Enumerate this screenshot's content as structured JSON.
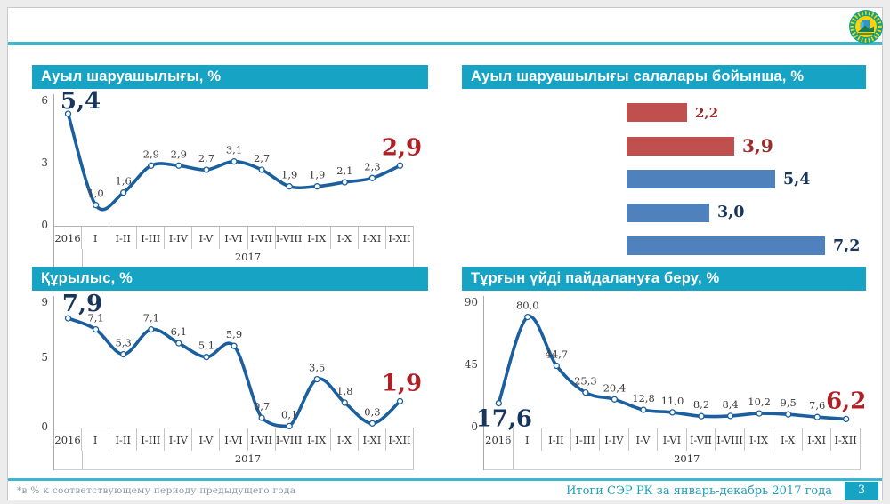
{
  "slide": {
    "header": {
      "logo": "kazstat-emblem"
    },
    "footer": {
      "footnote": "*в % к соответствующему периоду предыдущего года",
      "report_title": "Итоги СЭР РК за январь-декабрь 2017 года",
      "page_number": "3"
    }
  },
  "palette": {
    "banner_teal": "#17a3c4",
    "rule_teal": "#3eb7ce",
    "line_blue": "#1b5f9e",
    "first_label_navy": "#17365d",
    "last_label_red": "#b01f24",
    "bar_red": "#c0504d",
    "bar_blue": "#4f81bd",
    "bar_label_red": "#9b2d2a",
    "bar_label_navy": "#17365d",
    "footer_teal": "#1f9ebc"
  },
  "chart_data": [
    {
      "type": "line",
      "title": "Ауыл шаруашылығы, %",
      "categories": [
        "2016",
        "I",
        "I-II",
        "I-III",
        "I-IV",
        "I-V",
        "I-VI",
        "I-VII",
        "I-VIII",
        "I-IX",
        "I-X",
        "I-XI",
        "I-XII"
      ],
      "group_label": "2017",
      "values": [
        5.4,
        1.0,
        1.6,
        2.9,
        2.9,
        2.7,
        3.1,
        2.7,
        1.9,
        1.9,
        2.1,
        2.3,
        2.9
      ],
      "ylim": [
        0,
        6
      ],
      "yticks": [
        6,
        3,
        0
      ],
      "grid": false,
      "first_label": "5,4",
      "last_label": "2,9"
    },
    {
      "type": "bar",
      "title": "Ауыл шаруашылығы салалары бойынша, %",
      "values": [
        2.2,
        3.9,
        5.4,
        3.0,
        7.2
      ],
      "labels": [
        "2,2",
        "3,9",
        "5,4",
        "3,0",
        "7,2"
      ],
      "bar_colors": [
        "red",
        "red",
        "blue",
        "blue",
        "blue"
      ],
      "xlim": [
        0,
        7.5
      ],
      "grid": false
    },
    {
      "type": "line",
      "title": "Құрылыс,  %",
      "categories": [
        "2016",
        "I",
        "I-II",
        "I-III",
        "I-IV",
        "I-V",
        "I-VI",
        "I-VII",
        "I-VIII",
        "I-IX",
        "I-X",
        "I-XI",
        "I-XII"
      ],
      "group_label": "2017",
      "values": [
        7.9,
        7.1,
        5.3,
        7.1,
        6.1,
        5.1,
        5.9,
        0.7,
        0.1,
        3.5,
        1.8,
        0.3,
        1.9
      ],
      "ylim": [
        0,
        9
      ],
      "yticks": [
        9,
        5,
        0
      ],
      "grid": false,
      "first_label": "7,9",
      "last_label": "1,9"
    },
    {
      "type": "line",
      "title": "Тұрғын үйді пайдалануға беру, %",
      "categories": [
        "2016",
        "I",
        "I-II",
        "I-III",
        "I-IV",
        "I-V",
        "I-VI",
        "I-VII",
        "I-VIII",
        "I-IX",
        "I-X",
        "I-XI",
        "I-XII"
      ],
      "group_label": "2017",
      "values": [
        17.6,
        80.0,
        44.7,
        25.3,
        20.4,
        12.8,
        11.0,
        8.2,
        8.4,
        10.2,
        9.5,
        7.6,
        6.2
      ],
      "ylim": [
        0,
        90
      ],
      "yticks": [
        90,
        45,
        0
      ],
      "grid": false,
      "first_label": "17,6",
      "last_label": "6,2"
    }
  ]
}
